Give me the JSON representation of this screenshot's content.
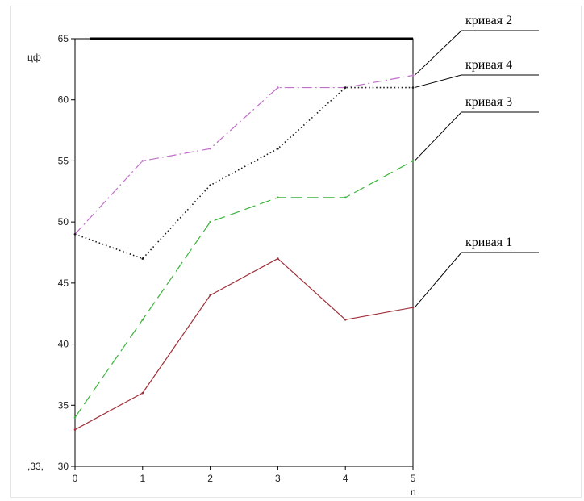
{
  "chart_data": {
    "type": "line",
    "xlabel": "n",
    "ylabel": "цф",
    "x": [
      0,
      1,
      2,
      3,
      4,
      5
    ],
    "xlim": [
      0,
      5
    ],
    "ylim": [
      30,
      65
    ],
    "x_ticks": [
      "0",
      "1",
      "2",
      "3",
      "4",
      "5"
    ],
    "y_ticks": [
      "30",
      "35",
      "40",
      "45",
      "50",
      "55",
      "60",
      "65"
    ],
    "ymin_annotation": ",33,",
    "grid": false,
    "legend_placement": "right",
    "series": [
      {
        "name": "кривая 1",
        "values": [
          33,
          36,
          44,
          47,
          42,
          43
        ],
        "color": "#a0303a",
        "style": "solid"
      },
      {
        "name": "кривая 2",
        "values": [
          49,
          55,
          56,
          61,
          61,
          62
        ],
        "color": "#c070c8",
        "style": "dashdot"
      },
      {
        "name": "кривая 3",
        "values": [
          34,
          42,
          50,
          52,
          52,
          55
        ],
        "color": "#3cb43c",
        "style": "dashed"
      },
      {
        "name": "кривая 4",
        "values": [
          49,
          47,
          53,
          56,
          61,
          61
        ],
        "color": "#1a1a1a",
        "style": "dotted"
      }
    ]
  }
}
